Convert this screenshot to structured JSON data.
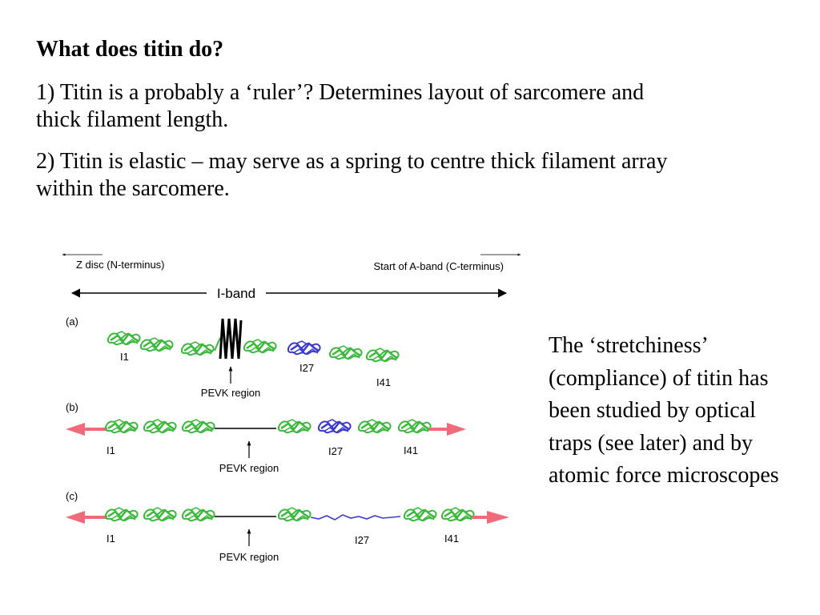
{
  "heading": "What does titin do?",
  "points": [
    "1) Titin is a probably a ‘ruler’? Determines layout of sarcomere and thick filament length.",
    "2) Titin is elastic – may serve as a spring to centre thick filament array within the sarcomere."
  ],
  "side_text": "The ‘stretchiness’ (compliance) of titin has been studied by optical traps (see later) and by atomic force microscopes",
  "figure": {
    "left_label": "Z disc (N-terminus)",
    "right_label": "Start of A-band (C-terminus)",
    "band_label": "I-band",
    "panels": [
      {
        "tag": "(a)",
        "i1": "I1",
        "i27": "I27",
        "i41": "I41",
        "pevk": "PEVK region"
      },
      {
        "tag": "(b)",
        "i1": "I1",
        "i27": "I27",
        "i41": "I41",
        "pevk": "PEVK region"
      },
      {
        "tag": "(c)",
        "i1": "I1",
        "i27": "I27",
        "i41": "I41",
        "pevk": "PEVK region"
      }
    ],
    "colors": {
      "domain_green": "#3cb83c",
      "i27_blue": "#3a3ad0",
      "force_arrow": "#f06b7a",
      "pevk_black": "#000000"
    }
  }
}
